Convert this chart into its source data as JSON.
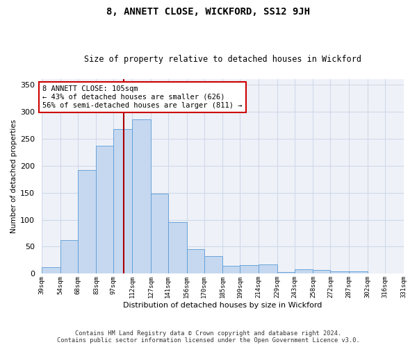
{
  "title": "8, ANNETT CLOSE, WICKFORD, SS12 9JH",
  "subtitle": "Size of property relative to detached houses in Wickford",
  "xlabel": "Distribution of detached houses by size in Wickford",
  "ylabel": "Number of detached properties",
  "bar_color": "#c5d8f0",
  "bar_edge_color": "#5b9bd5",
  "grid_color": "#d0d8e8",
  "background_color": "#eef2f8",
  "vline_value": 105,
  "vline_color": "#aa0000",
  "annotation_line1": "8 ANNETT CLOSE: 105sqm",
  "annotation_line2": "← 43% of detached houses are smaller (626)",
  "annotation_line3": "56% of semi-detached houses are larger (811) →",
  "annotation_box_edge": "#cc0000",
  "bins": [
    39,
    54,
    68,
    83,
    97,
    112,
    127,
    141,
    156,
    170,
    185,
    199,
    214,
    229,
    243,
    258,
    272,
    287,
    302,
    316,
    331
  ],
  "counts": [
    12,
    62,
    192,
    237,
    268,
    285,
    148,
    95,
    45,
    33,
    15,
    16,
    17,
    3,
    8,
    7,
    4,
    4,
    1,
    0
  ],
  "footer_line1": "Contains HM Land Registry data © Crown copyright and database right 2024.",
  "footer_line2": "Contains public sector information licensed under the Open Government Licence v3.0.",
  "ylim": [
    0,
    360
  ],
  "yticks": [
    0,
    50,
    100,
    150,
    200,
    250,
    300,
    350
  ],
  "tick_labels": [
    "39sqm",
    "54sqm",
    "68sqm",
    "83sqm",
    "97sqm",
    "112sqm",
    "127sqm",
    "141sqm",
    "156sqm",
    "170sqm",
    "185sqm",
    "199sqm",
    "214sqm",
    "229sqm",
    "243sqm",
    "258sqm",
    "272sqm",
    "287sqm",
    "302sqm",
    "316sqm",
    "331sqm"
  ]
}
